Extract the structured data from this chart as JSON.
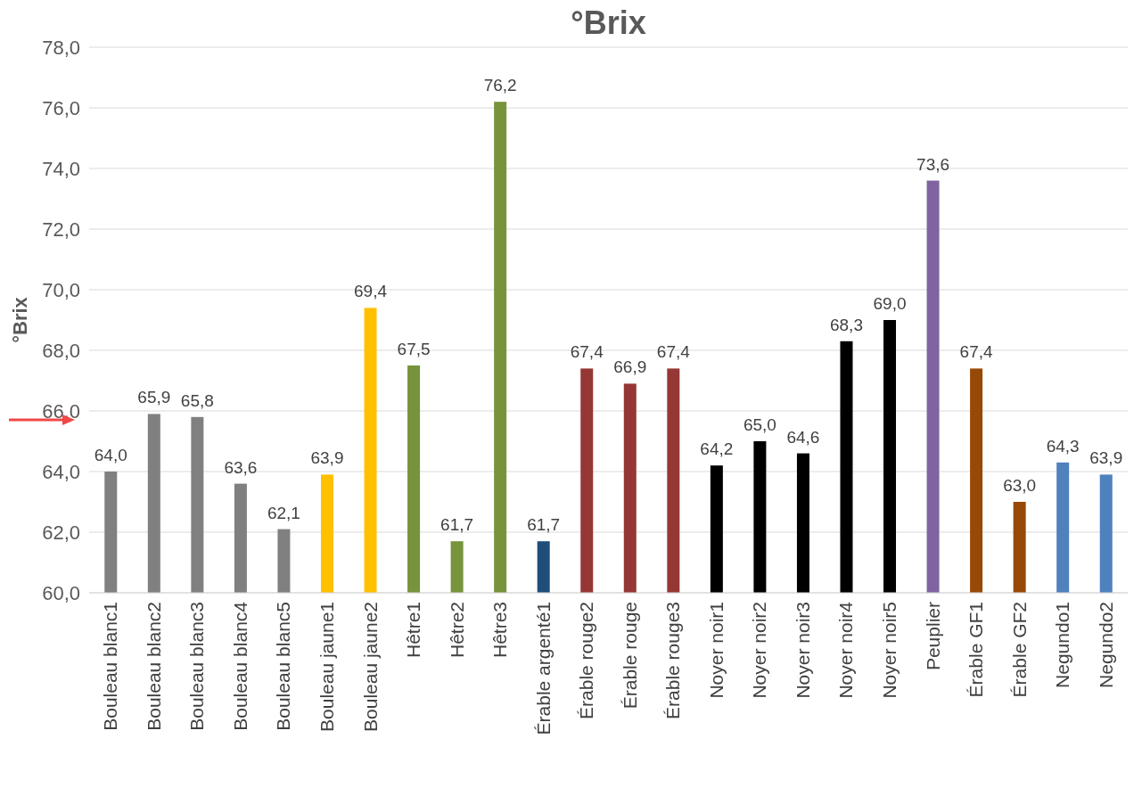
{
  "chart_data": {
    "type": "bar",
    "title": "°Brix",
    "ylabel": "°Brix",
    "categories": [
      "Bouleau blanc1",
      "Bouleau blanc2",
      "Bouleau blanc3",
      "Bouleau blanc4",
      "Bouleau blanc5",
      "Bouleau jaune1",
      "Bouleau jaune2",
      "Hêtre1",
      "Hêtre2",
      "Hêtre3",
      "Érable argenté1",
      "Érable rouge2",
      "Érable rouge",
      "Érable rouge3",
      "Noyer noir1",
      "Noyer noir2",
      "Noyer noir3",
      "Noyer noir4",
      "Noyer noir5",
      "Peuplier",
      "Érable GF1",
      "Érable GF2",
      "Negundo1",
      "Negundo2"
    ],
    "values": [
      64.0,
      65.9,
      65.8,
      63.6,
      62.1,
      63.9,
      69.4,
      67.5,
      61.7,
      76.2,
      61.7,
      67.4,
      66.9,
      67.4,
      64.2,
      65.0,
      64.6,
      68.3,
      69.0,
      73.6,
      67.4,
      63.0,
      64.3,
      63.9
    ],
    "value_labels": [
      "64,0",
      "65,9",
      "65,8",
      "63,6",
      "62,1",
      "63,9",
      "69,4",
      "67,5",
      "61,7",
      "76,2",
      "61,7",
      "67,4",
      "66,9",
      "67,4",
      "64,2",
      "65,0",
      "64,6",
      "68,3",
      "69,0",
      "73,6",
      "67,4",
      "63,0",
      "64,3",
      "63,9"
    ],
    "colors": [
      "#808080",
      "#808080",
      "#808080",
      "#808080",
      "#808080",
      "#ffc000",
      "#ffc000",
      "#77933c",
      "#77933c",
      "#77933c",
      "#1f4e79",
      "#953735",
      "#953735",
      "#953735",
      "#000000",
      "#000000",
      "#000000",
      "#000000",
      "#000000",
      "#8064a2",
      "#984807",
      "#984807",
      "#4f81bd",
      "#4f81bd"
    ],
    "ylim": [
      60,
      78
    ],
    "yticks": [
      {
        "value": 60,
        "label": "60,0"
      },
      {
        "value": 62,
        "label": "62,0"
      },
      {
        "value": 64,
        "label": "64,0"
      },
      {
        "value": 66,
        "label": "66,0"
      },
      {
        "value": 68,
        "label": "68,0"
      },
      {
        "value": 70,
        "label": "70,0"
      },
      {
        "value": 72,
        "label": "72,0"
      },
      {
        "value": 74,
        "label": "74,0"
      },
      {
        "value": 76,
        "label": "76,0"
      },
      {
        "value": 78,
        "label": "78,0"
      }
    ],
    "grid": "y"
  }
}
